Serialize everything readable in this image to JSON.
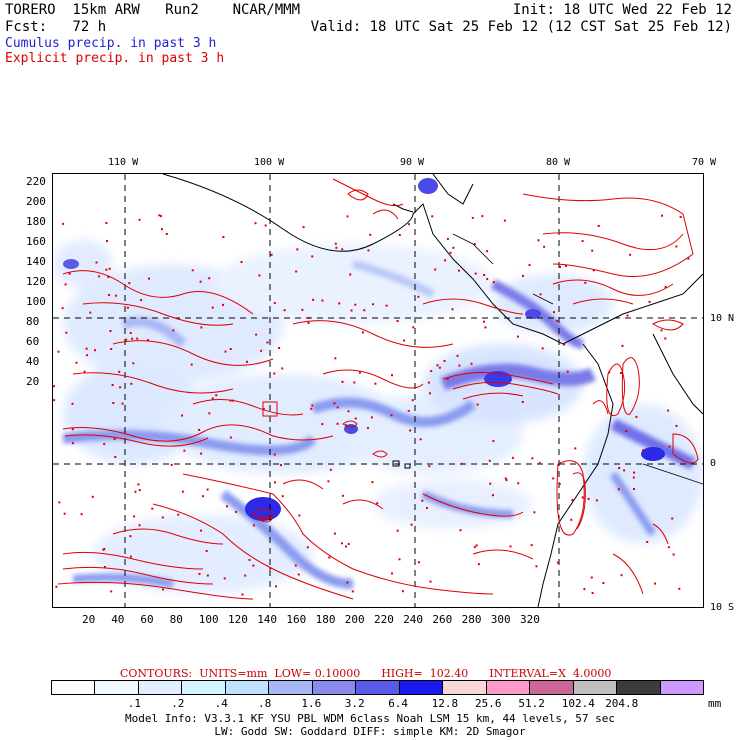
{
  "header": {
    "line1_left": "TORERO  15km ARW   Run2    NCAR/MMM",
    "line1_right": "Init: 18 UTC Wed 22 Feb 12",
    "line2_left": "Fcst:   72 h",
    "line2_right": "Valid: 18 UTC Sat 25 Feb 12 (12 CST Sat 25 Feb 12)"
  },
  "legend": {
    "cumulus": "Cumulus precip. in past 3 h",
    "explicit": "Explicit precip. in past 3 h",
    "cumulus_color": "#2222cc",
    "explicit_color": "#dd0000"
  },
  "map": {
    "y_ticks": [
      "220",
      "200",
      "180",
      "160",
      "140",
      "120",
      "100",
      "80",
      "60",
      "40",
      "20"
    ],
    "x_ticks": [
      "20",
      "40",
      "60",
      "80",
      "100",
      "120",
      "140",
      "160",
      "180",
      "200",
      "220",
      "240",
      "260",
      "280",
      "300",
      "320"
    ],
    "lon_labels": [
      "110 W",
      "100 W",
      "90 W",
      "80 W",
      "70 W"
    ],
    "lat_labels": [
      "10 N",
      "0",
      "10 S"
    ]
  },
  "contours_line": "CONTOURS:  UNITS=mm  LOW= 0.10000      HIGH=  102.40      INTERVAL=X  4.0000",
  "colorbar": {
    "colors": [
      "#ffffff",
      "#f2f8ff",
      "#e2efff",
      "#d6f4ff",
      "#bfe0ff",
      "#a8b8f4",
      "#8a8aee",
      "#5a5ae8",
      "#1a1aee",
      "#f6d8d8",
      "#ff99cc",
      "#cc6699",
      "#bfbfbf",
      "#3c3c3c",
      "#cc99ff"
    ],
    "labels": [
      ".1",
      ".2",
      ".4",
      ".8",
      "1.6",
      "3.2",
      "6.4",
      "12.8",
      "25.6",
      "51.2",
      "102.4",
      "204.8"
    ],
    "units": "mm"
  },
  "model_info": {
    "line1": "Model Info: V3.3.1   KF     YSU PBL   WDM 6class   Noah LSM  15 km,    44 levels,    57 sec",
    "line2": "LW: Godd SW: Goddard DIFF: simple KM: 2D Smagor"
  }
}
